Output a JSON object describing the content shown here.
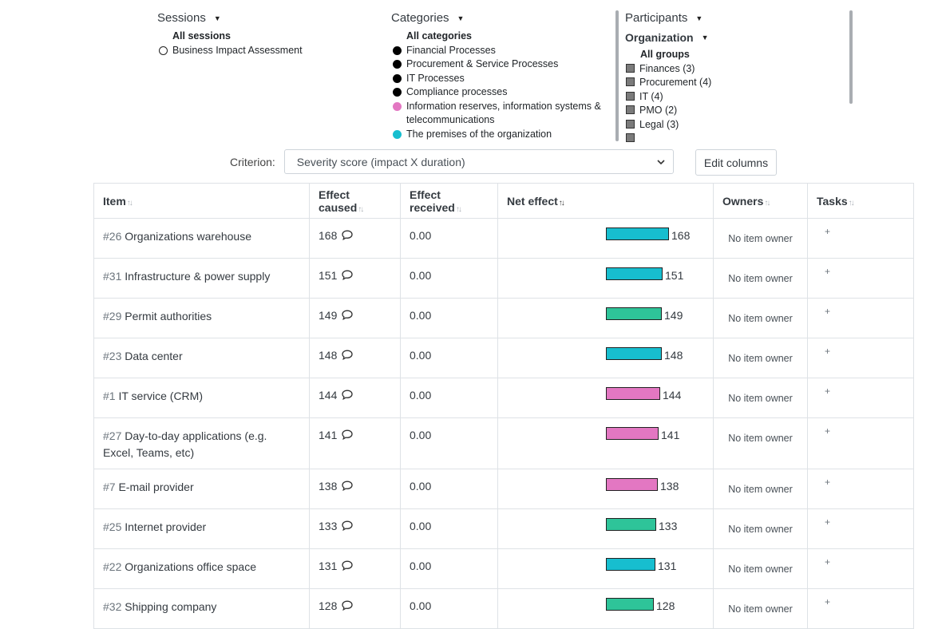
{
  "filters": {
    "sessions": {
      "title": "Sessions",
      "all_label": "All sessions",
      "items": [
        {
          "label": "Business Impact Assessment"
        }
      ]
    },
    "categories": {
      "title": "Categories",
      "all_label": "All categories",
      "items": [
        {
          "label": "Financial Processes",
          "color": "#000000"
        },
        {
          "label": "Procurement & Service Processes",
          "color": "#000000"
        },
        {
          "label": "IT Processes",
          "color": "#000000"
        },
        {
          "label": "Compliance processes",
          "color": "#000000"
        },
        {
          "label": "Information reserves, information systems & telecommunications",
          "color": "#e377c2"
        },
        {
          "label": "The premises of the organization",
          "color": "#17becf"
        }
      ]
    },
    "participants": {
      "title": "Participants",
      "subtitle": "Organization",
      "all_label": "All groups",
      "items": [
        {
          "label": "Finances (3)"
        },
        {
          "label": "Procurement (4)"
        },
        {
          "label": "IT (4)"
        },
        {
          "label": "PMO (2)"
        },
        {
          "label": "Legal (3)"
        },
        {
          "label": ""
        }
      ]
    }
  },
  "criterion": {
    "label": "Criterion:",
    "selected": "Severity score (impact X duration)"
  },
  "edit_columns_label": "Edit columns",
  "table": {
    "headers": {
      "item": "Item",
      "effect_caused": "Effect caused",
      "effect_received": "Effect received",
      "net_effect": "Net effect",
      "owners": "Owners",
      "tasks": "Tasks"
    },
    "net_effect_max": 168,
    "rows": [
      {
        "num": "#26",
        "name": "Organizations warehouse",
        "caused": "168",
        "received": "0.00",
        "net": 168,
        "color": "#17becf",
        "owner": "No item owner",
        "task": "+"
      },
      {
        "num": "#31",
        "name": "Infrastructure & power supply",
        "caused": "151",
        "received": "0.00",
        "net": 151,
        "color": "#17becf",
        "owner": "No item owner",
        "task": "+"
      },
      {
        "num": "#29",
        "name": "Permit authorities",
        "caused": "149",
        "received": "0.00",
        "net": 149,
        "color": "#2ec499",
        "owner": "No item owner",
        "task": "+"
      },
      {
        "num": "#23",
        "name": "Data center",
        "caused": "148",
        "received": "0.00",
        "net": 148,
        "color": "#17becf",
        "owner": "No item owner",
        "task": "+"
      },
      {
        "num": "#1",
        "name": "IT service (CRM)",
        "caused": "144",
        "received": "0.00",
        "net": 144,
        "color": "#e377c2",
        "owner": "No item owner",
        "task": "+"
      },
      {
        "num": "#27",
        "name": "Day-to-day applications (e.g. Excel, Teams, etc)",
        "caused": "141",
        "received": "0.00",
        "net": 141,
        "color": "#e377c2",
        "owner": "No item owner",
        "task": "+"
      },
      {
        "num": "#7",
        "name": "E-mail provider",
        "caused": "138",
        "received": "0.00",
        "net": 138,
        "color": "#e377c2",
        "owner": "No item owner",
        "task": "+"
      },
      {
        "num": "#25",
        "name": "Internet provider",
        "caused": "133",
        "received": "0.00",
        "net": 133,
        "color": "#2ec499",
        "owner": "No item owner",
        "task": "+"
      },
      {
        "num": "#22",
        "name": "Organizations office space",
        "caused": "131",
        "received": "0.00",
        "net": 131,
        "color": "#17becf",
        "owner": "No item owner",
        "task": "+"
      },
      {
        "num": "#32",
        "name": "Shipping company",
        "caused": "128",
        "received": "0.00",
        "net": 128,
        "color": "#2ec499",
        "owner": "No item owner",
        "task": "+"
      }
    ]
  }
}
